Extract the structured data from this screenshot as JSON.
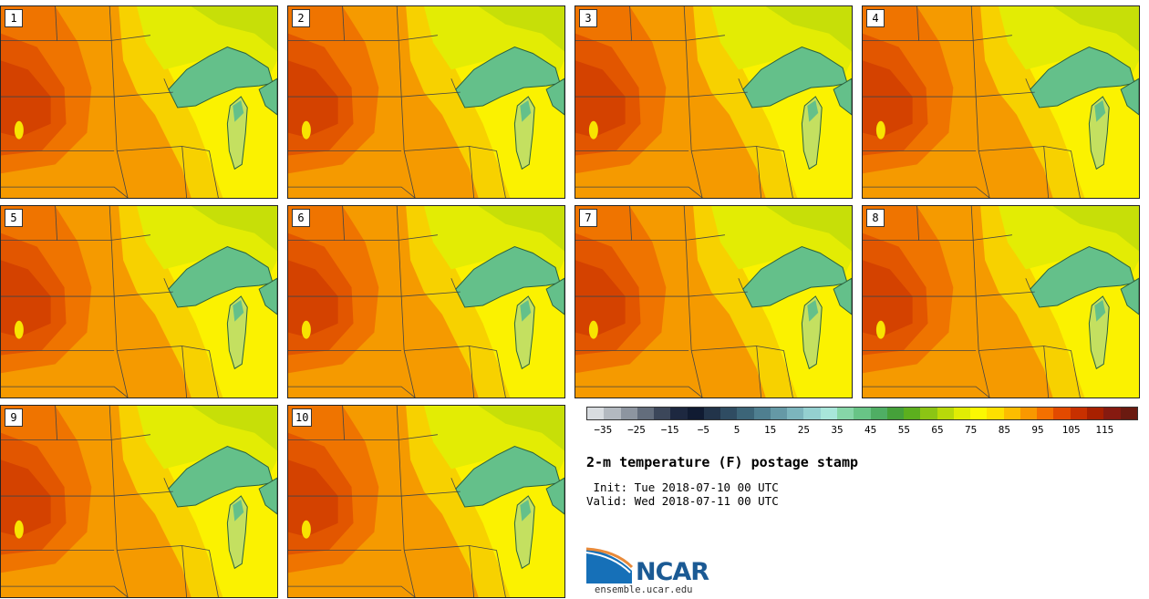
{
  "panels": [
    {
      "label": "1"
    },
    {
      "label": "2"
    },
    {
      "label": "3"
    },
    {
      "label": "4"
    },
    {
      "label": "5"
    },
    {
      "label": "6"
    },
    {
      "label": "7"
    },
    {
      "label": "8"
    },
    {
      "label": "9"
    },
    {
      "label": "10"
    }
  ],
  "colorbar": {
    "colors": [
      "#d8dce0",
      "#b3b9c0",
      "#8d95a0",
      "#636d7c",
      "#3c475a",
      "#1d2840",
      "#101b32",
      "#22344a",
      "#2f4c62",
      "#3c6578",
      "#4f7f90",
      "#6599a6",
      "#7cb5bd",
      "#94d0d0",
      "#a8e6da",
      "#86d6a8",
      "#68c486",
      "#4fae64",
      "#45a13a",
      "#5caf1e",
      "#8cc514",
      "#b8d90a",
      "#e0ec04",
      "#fbf802",
      "#fde000",
      "#fcbd00",
      "#f99800",
      "#f47000",
      "#e24a00",
      "#c83000",
      "#a82000",
      "#861a10",
      "#6a1a10"
    ],
    "tick_labels": [
      "−35",
      "−25",
      "−15",
      "−5",
      "5",
      "15",
      "25",
      "35",
      "45",
      "55",
      "65",
      "75",
      "85",
      "95",
      "105",
      "115"
    ]
  },
  "title": "2-m temperature (F) postage stamp",
  "init_text": " Init: Tue 2018-07-10 00 UTC",
  "valid_text": "Valid: Wed 2018-07-11 00 UTC",
  "logo": {
    "text": "NCAR",
    "url": "ensemble.ucar.edu"
  }
}
